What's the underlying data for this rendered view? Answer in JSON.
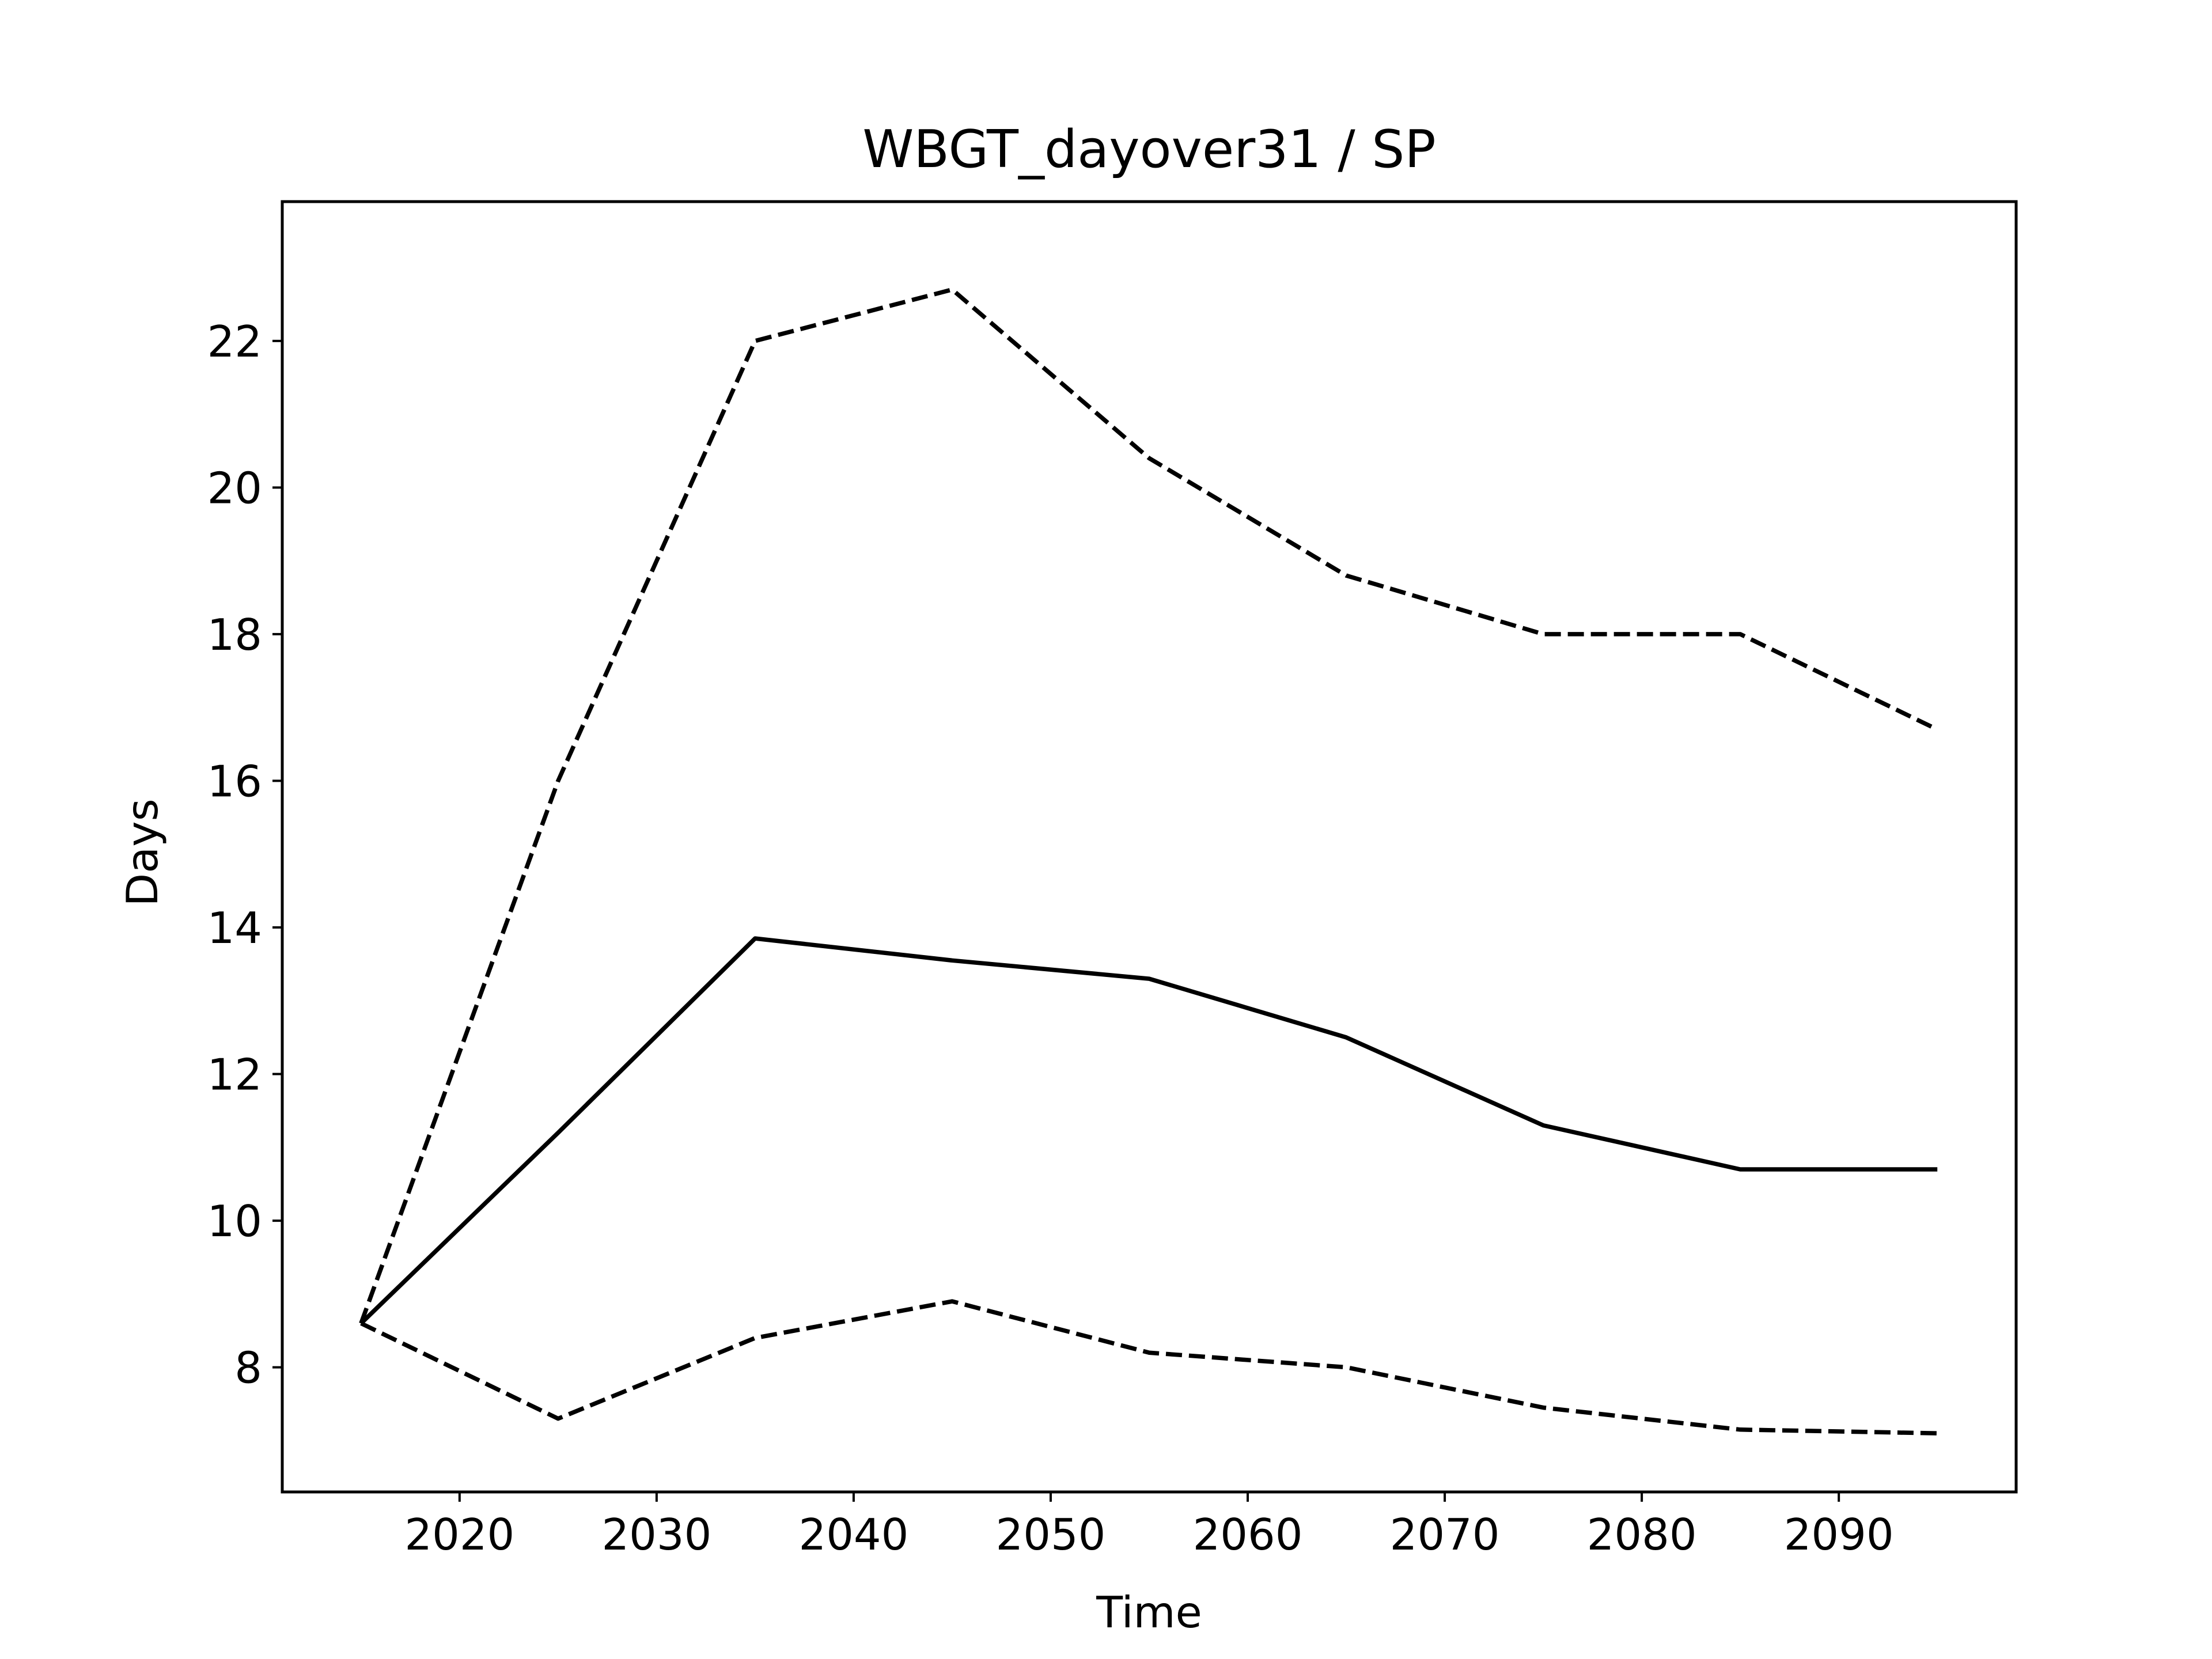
{
  "chart_data": {
    "type": "line",
    "title": "WBGT_dayover31 / SP",
    "xlabel": "Time",
    "ylabel": "Days",
    "xlim": [
      2011,
      2099
    ],
    "ylim": [
      6.3,
      23.9
    ],
    "xticks": [
      2020,
      2030,
      2040,
      2050,
      2060,
      2070,
      2080,
      2090
    ],
    "yticks": [
      8,
      10,
      12,
      14,
      16,
      18,
      20,
      22
    ],
    "grid": false,
    "legend": "none",
    "x": [
      2015,
      2025,
      2035,
      2045,
      2055,
      2065,
      2075,
      2085,
      2095
    ],
    "series": [
      {
        "style": "dashed",
        "color": "#000000",
        "values": [
          8.6,
          16.0,
          22.0,
          22.7,
          20.4,
          18.8,
          18.0,
          18.0,
          16.7
        ]
      },
      {
        "style": "solid",
        "color": "#000000",
        "values": [
          8.6,
          11.2,
          13.85,
          13.55,
          13.3,
          12.5,
          11.3,
          10.7,
          10.7
        ]
      },
      {
        "style": "dashed",
        "color": "#000000",
        "values": [
          8.6,
          7.3,
          8.4,
          8.9,
          8.2,
          8.0,
          7.45,
          7.15,
          7.1
        ]
      }
    ]
  }
}
